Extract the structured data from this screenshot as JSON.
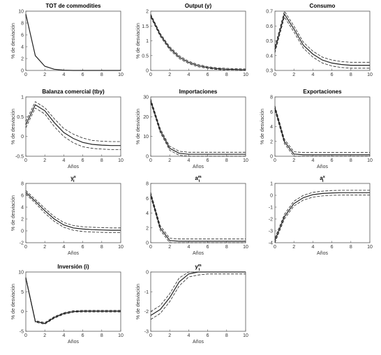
{
  "chart_data": [
    {
      "id": "p1",
      "type": "line",
      "title": "TOT de commodities",
      "xlabel": "",
      "ylabel": "% de desviación",
      "xlim": [
        0,
        10
      ],
      "ylim": [
        0,
        10
      ],
      "xticks": [
        0,
        2,
        4,
        6,
        8,
        10
      ],
      "yticks": [
        0,
        2,
        4,
        6,
        8,
        10
      ],
      "x": [
        0,
        1,
        2,
        3,
        4,
        5,
        6,
        7,
        8,
        9,
        10
      ],
      "series": [
        {
          "role": "median",
          "values": [
            9.5,
            2.5,
            0.7,
            0.2,
            0.05,
            0,
            0,
            0,
            0,
            0,
            0
          ],
          "style": "solid"
        }
      ]
    },
    {
      "id": "p2",
      "type": "line",
      "title": "Output (y)",
      "xlabel": "",
      "ylabel": "% de desviación",
      "xlim": [
        0,
        10
      ],
      "ylim": [
        0,
        2
      ],
      "xticks": [
        0,
        2,
        4,
        6,
        8,
        10
      ],
      "yticks": [
        0,
        0.5,
        1,
        1.5,
        2
      ],
      "x": [
        0,
        1,
        2,
        3,
        4,
        5,
        6,
        7,
        8,
        9,
        10
      ],
      "series": [
        {
          "role": "median",
          "values": [
            1.85,
            1.2,
            0.75,
            0.45,
            0.27,
            0.16,
            0.1,
            0.06,
            0.04,
            0.03,
            0.02
          ],
          "style": "solid"
        },
        {
          "role": "upper",
          "values": [
            1.9,
            1.25,
            0.8,
            0.5,
            0.31,
            0.2,
            0.13,
            0.09,
            0.07,
            0.06,
            0.05
          ],
          "style": "dashed"
        },
        {
          "role": "lower",
          "values": [
            1.8,
            1.15,
            0.7,
            0.4,
            0.23,
            0.12,
            0.07,
            0.03,
            0.01,
            0.0,
            0.0
          ],
          "style": "dashed"
        }
      ]
    },
    {
      "id": "p3",
      "type": "line",
      "title": "Consumo",
      "xlabel": "",
      "ylabel": "",
      "xlim": [
        0,
        10
      ],
      "ylim": [
        0.3,
        0.7
      ],
      "xticks": [
        0,
        2,
        4,
        6,
        8,
        10
      ],
      "yticks": [
        0.3,
        0.4,
        0.5,
        0.6,
        0.7
      ],
      "x": [
        0,
        1,
        2,
        3,
        4,
        5,
        6,
        7,
        8,
        9,
        10
      ],
      "series": [
        {
          "role": "median",
          "values": [
            0.44,
            0.68,
            0.58,
            0.47,
            0.41,
            0.37,
            0.35,
            0.34,
            0.335,
            0.335,
            0.335
          ],
          "style": "solid"
        },
        {
          "role": "upper",
          "values": [
            0.46,
            0.7,
            0.6,
            0.49,
            0.43,
            0.39,
            0.37,
            0.36,
            0.355,
            0.355,
            0.355
          ],
          "style": "dashed"
        },
        {
          "role": "lower",
          "values": [
            0.42,
            0.66,
            0.56,
            0.45,
            0.39,
            0.35,
            0.33,
            0.32,
            0.315,
            0.315,
            0.315
          ],
          "style": "dashed"
        }
      ]
    },
    {
      "id": "p4",
      "type": "line",
      "title": "Balanza comercial (tby)",
      "xlabel": "Años",
      "ylabel": "% de desviación",
      "xlim": [
        0,
        10
      ],
      "ylim": [
        -0.5,
        1
      ],
      "xticks": [
        0,
        2,
        4,
        6,
        8,
        10
      ],
      "yticks": [
        -0.5,
        0,
        0.5,
        1
      ],
      "x": [
        0,
        1,
        2,
        3,
        4,
        5,
        6,
        7,
        8,
        9,
        10
      ],
      "series": [
        {
          "role": "median",
          "values": [
            0.3,
            0.8,
            0.65,
            0.35,
            0.1,
            -0.05,
            -0.15,
            -0.2,
            -0.22,
            -0.23,
            -0.23
          ],
          "style": "solid"
        },
        {
          "role": "upper",
          "values": [
            0.38,
            0.88,
            0.73,
            0.45,
            0.2,
            0.06,
            -0.04,
            -0.1,
            -0.12,
            -0.13,
            -0.13
          ],
          "style": "dashed"
        },
        {
          "role": "lower",
          "values": [
            0.22,
            0.72,
            0.57,
            0.25,
            0.0,
            -0.16,
            -0.26,
            -0.3,
            -0.32,
            -0.33,
            -0.33
          ],
          "style": "dashed"
        }
      ]
    },
    {
      "id": "p5",
      "type": "line",
      "title": "Importaciones",
      "xlabel": "Años",
      "ylabel": "% de desviación",
      "xlim": [
        0,
        10
      ],
      "ylim": [
        0,
        30
      ],
      "xticks": [
        0,
        2,
        4,
        6,
        8,
        10
      ],
      "yticks": [
        0,
        10,
        20,
        30
      ],
      "x": [
        0,
        1,
        2,
        3,
        4,
        5,
        6,
        7,
        8,
        9,
        10
      ],
      "series": [
        {
          "role": "median",
          "values": [
            28,
            13,
            4,
            1.5,
            1,
            1,
            1,
            1,
            1,
            1,
            1
          ],
          "style": "solid"
        },
        {
          "role": "upper",
          "values": [
            29,
            14,
            5,
            2.5,
            2,
            2,
            2,
            2,
            2,
            2,
            2
          ],
          "style": "dashed"
        },
        {
          "role": "lower",
          "values": [
            27,
            12,
            3,
            0.5,
            0,
            0,
            0,
            0,
            0,
            0,
            0
          ],
          "style": "dashed"
        }
      ]
    },
    {
      "id": "p6",
      "type": "line",
      "title": "Exportaciones",
      "xlabel": "Años",
      "ylabel": "% de desviación",
      "xlim": [
        0,
        10
      ],
      "ylim": [
        0,
        8
      ],
      "xticks": [
        0,
        2,
        4,
        6,
        8,
        10
      ],
      "yticks": [
        0,
        2,
        4,
        6,
        8
      ],
      "x": [
        0,
        1,
        2,
        3,
        4,
        5,
        6,
        7,
        8,
        9,
        10
      ],
      "series": [
        {
          "role": "median",
          "values": [
            6.5,
            2,
            0.3,
            0.2,
            0.2,
            0.2,
            0.2,
            0.2,
            0.2,
            0.2,
            0.2
          ],
          "style": "solid"
        },
        {
          "role": "upper",
          "values": [
            6.8,
            2.3,
            0.6,
            0.5,
            0.5,
            0.5,
            0.5,
            0.5,
            0.5,
            0.5,
            0.5
          ],
          "style": "dashed"
        },
        {
          "role": "lower",
          "values": [
            6.2,
            1.7,
            0.0,
            -0.1,
            -0.1,
            -0.1,
            -0.1,
            -0.1,
            -0.1,
            -0.1,
            -0.1
          ],
          "style": "dashed"
        }
      ]
    },
    {
      "id": "p7",
      "type": "line",
      "title": "y",
      "title_sup": "x",
      "title_sub": "t",
      "xlabel": "Años",
      "ylabel": "% de desviación",
      "xlim": [
        0,
        10
      ],
      "ylim": [
        -2,
        8
      ],
      "xticks": [
        0,
        2,
        4,
        6,
        8,
        10
      ],
      "yticks": [
        -2,
        0,
        2,
        4,
        6,
        8
      ],
      "x": [
        0,
        1,
        2,
        3,
        4,
        5,
        6,
        7,
        8,
        9,
        10
      ],
      "series": [
        {
          "role": "median",
          "values": [
            6.5,
            5,
            3.4,
            2,
            1,
            0.5,
            0.3,
            0.2,
            0.15,
            0.1,
            0.1
          ],
          "style": "solid"
        },
        {
          "role": "upper",
          "values": [
            6.8,
            5.3,
            3.8,
            2.4,
            1.4,
            0.9,
            0.7,
            0.6,
            0.55,
            0.5,
            0.5
          ],
          "style": "dashed"
        },
        {
          "role": "lower",
          "values": [
            6.2,
            4.7,
            3.0,
            1.6,
            0.6,
            0.1,
            -0.1,
            -0.2,
            -0.25,
            -0.3,
            -0.3
          ],
          "style": "dashed"
        }
      ]
    },
    {
      "id": "p8",
      "type": "line",
      "title": "a",
      "title_sup": "m",
      "title_sub": "t",
      "xlabel": "Años",
      "ylabel": "",
      "xlim": [
        0,
        10
      ],
      "ylim": [
        0,
        8
      ],
      "xticks": [
        0,
        2,
        4,
        6,
        8,
        10
      ],
      "yticks": [
        0,
        2,
        4,
        6,
        8
      ],
      "x": [
        0,
        1,
        2,
        3,
        4,
        5,
        6,
        7,
        8,
        9,
        10
      ],
      "series": [
        {
          "role": "median",
          "values": [
            6.5,
            2,
            0.3,
            0.2,
            0.2,
            0.2,
            0.2,
            0.2,
            0.2,
            0.2,
            0.2
          ],
          "style": "solid"
        },
        {
          "role": "upper",
          "values": [
            6.8,
            2.3,
            0.6,
            0.5,
            0.5,
            0.5,
            0.5,
            0.5,
            0.5,
            0.5,
            0.5
          ],
          "style": "dashed"
        },
        {
          "role": "lower",
          "values": [
            6.2,
            1.7,
            0.0,
            -0.1,
            -0.1,
            -0.1,
            -0.1,
            -0.1,
            -0.1,
            -0.1,
            -0.1
          ],
          "style": "dashed"
        }
      ]
    },
    {
      "id": "p9",
      "type": "line",
      "title": "a",
      "title_sup": "x",
      "title_sub": "t",
      "xlabel": "Años",
      "ylabel": "",
      "xlim": [
        0,
        10
      ],
      "ylim": [
        -4,
        1
      ],
      "xticks": [
        0,
        2,
        4,
        6,
        8,
        10
      ],
      "yticks": [
        -4,
        -3,
        -2,
        -1,
        0,
        1
      ],
      "x": [
        0,
        1,
        2,
        3,
        4,
        5,
        6,
        7,
        8,
        9,
        10
      ],
      "series": [
        {
          "role": "median",
          "values": [
            -3.8,
            -1.8,
            -0.7,
            -0.2,
            0.05,
            0.15,
            0.2,
            0.22,
            0.22,
            0.22,
            0.22
          ],
          "style": "solid"
        },
        {
          "role": "upper",
          "values": [
            -3.6,
            -1.6,
            -0.5,
            0.0,
            0.25,
            0.35,
            0.4,
            0.42,
            0.42,
            0.42,
            0.42
          ],
          "style": "dashed"
        },
        {
          "role": "lower",
          "values": [
            -4.0,
            -2.0,
            -0.9,
            -0.4,
            -0.15,
            -0.05,
            0.0,
            0.02,
            0.02,
            0.02,
            0.02
          ],
          "style": "dashed"
        }
      ]
    },
    {
      "id": "p10",
      "type": "line",
      "title": "Inversión (i)",
      "xlabel": "Años",
      "ylabel": "% de desviación",
      "xlim": [
        0,
        10
      ],
      "ylim": [
        -5,
        10
      ],
      "xticks": [
        0,
        2,
        4,
        6,
        8,
        10
      ],
      "yticks": [
        -5,
        0,
        5,
        10
      ],
      "x": [
        0,
        1,
        2,
        3,
        4,
        5,
        6,
        7,
        8,
        9,
        10
      ],
      "series": [
        {
          "role": "median",
          "values": [
            8.5,
            -2.5,
            -3,
            -1.5,
            -0.5,
            0,
            0.1,
            0.1,
            0.1,
            0.1,
            0.1
          ],
          "style": "solid"
        },
        {
          "role": "upper",
          "values": [
            8.7,
            -2.3,
            -2.8,
            -1.3,
            -0.3,
            0.2,
            0.3,
            0.3,
            0.3,
            0.3,
            0.3
          ],
          "style": "dashed"
        },
        {
          "role": "lower",
          "values": [
            8.3,
            -2.7,
            -3.2,
            -1.7,
            -0.7,
            -0.2,
            -0.1,
            -0.1,
            -0.1,
            -0.1,
            -0.1
          ],
          "style": "dashed"
        }
      ]
    },
    {
      "id": "p11",
      "type": "line",
      "title": "y",
      "title_sup": "m",
      "title_sub": "t",
      "xlabel": "Años",
      "ylabel": "% de desviación",
      "xlim": [
        0,
        10
      ],
      "ylim": [
        -3,
        0
      ],
      "xticks": [
        0,
        2,
        4,
        6,
        8,
        10
      ],
      "yticks": [
        -3,
        -2,
        -1,
        0
      ],
      "x": [
        0,
        1,
        2,
        3,
        4,
        5,
        6,
        7,
        8,
        9,
        10
      ],
      "series": [
        {
          "role": "median",
          "values": [
            -2.2,
            -1.9,
            -1.3,
            -0.5,
            -0.1,
            0.0,
            0.0,
            0.0,
            0.0,
            0.0,
            0.0
          ],
          "style": "solid"
        },
        {
          "role": "upper",
          "values": [
            -2.0,
            -1.7,
            -1.1,
            -0.3,
            0.05,
            0.1,
            0.1,
            0.1,
            0.1,
            0.1,
            0.1
          ],
          "style": "dashed"
        },
        {
          "role": "lower",
          "values": [
            -2.4,
            -2.1,
            -1.5,
            -0.7,
            -0.25,
            -0.15,
            -0.1,
            -0.1,
            -0.1,
            -0.1,
            -0.1
          ],
          "style": "dashed"
        }
      ]
    }
  ]
}
